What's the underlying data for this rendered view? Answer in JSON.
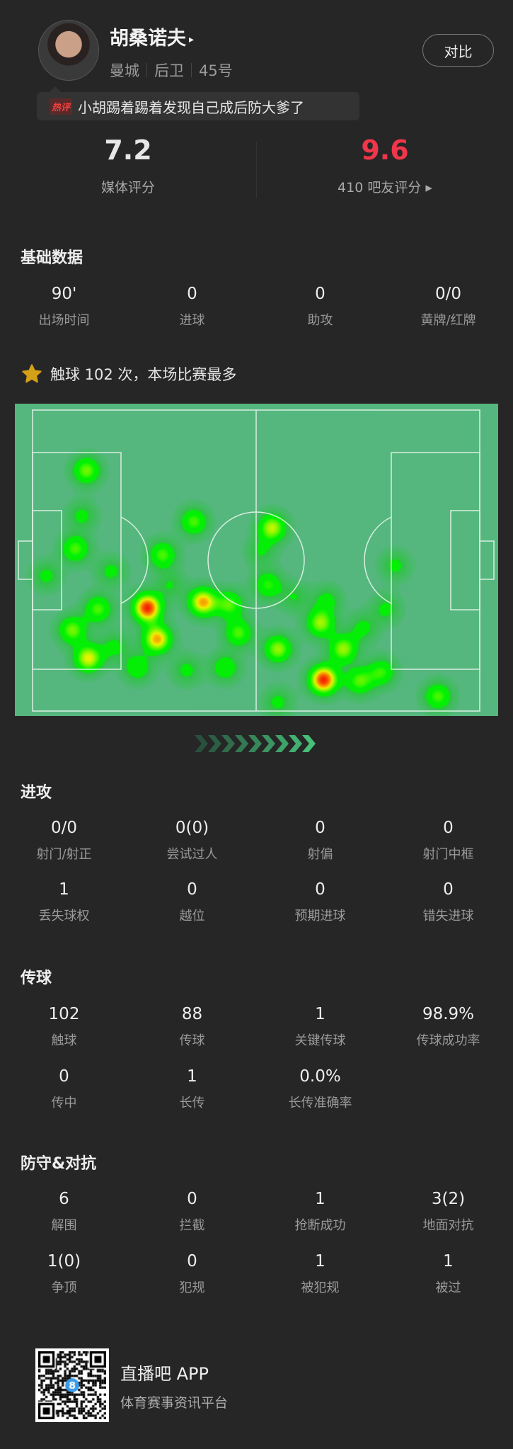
{
  "player": {
    "name": "胡桑诺夫",
    "name_arrow": "▸",
    "team": "曼城",
    "position": "后卫",
    "number": "45号",
    "compare_label": "对比"
  },
  "hot_comment": {
    "tag": "热评",
    "text": "小胡踢着踢着发现自己成后防大爹了"
  },
  "ratings": {
    "media": {
      "value": "7.2",
      "label": "媒体评分"
    },
    "fans": {
      "value": "9.6",
      "label": "410 吧友评分 ▸",
      "color": "#f0364a"
    }
  },
  "basic": {
    "title": "基础数据",
    "items": [
      {
        "value": "90'",
        "label": "出场时间"
      },
      {
        "value": "0",
        "label": "进球"
      },
      {
        "value": "0",
        "label": "助攻"
      },
      {
        "value": "0/0",
        "label": "黄牌/红牌"
      }
    ]
  },
  "highlight": {
    "icon": "star-icon",
    "color": "#d4a017",
    "text": "触球 102 次，本场比赛最多"
  },
  "heatmap": {
    "pitch_color": "#55b77e",
    "attack_direction": "right",
    "points": [
      [
        12,
        20,
        0.55
      ],
      [
        11,
        35,
        0.3
      ],
      [
        9.5,
        46,
        0.5
      ],
      [
        3,
        55,
        0.3
      ],
      [
        17.5,
        53.5,
        0.3
      ],
      [
        36,
        37,
        0.5
      ],
      [
        53.5,
        39,
        0.65
      ],
      [
        29,
        48,
        0.5
      ],
      [
        25.6,
        65.6,
        1.0
      ],
      [
        38,
        63.7,
        0.8
      ],
      [
        27.8,
        76,
        0.8
      ],
      [
        12.4,
        82.4,
        0.7
      ],
      [
        8.8,
        73,
        0.55
      ],
      [
        14.6,
        66,
        0.5
      ],
      [
        44,
        64.5,
        0.5
      ],
      [
        46,
        74,
        0.5
      ],
      [
        52.6,
        58,
        0.45
      ],
      [
        51,
        47,
        0.25
      ],
      [
        30.7,
        58,
        0.25
      ],
      [
        64.3,
        70.7,
        0.6
      ],
      [
        54.8,
        79.3,
        0.6
      ],
      [
        65,
        89.5,
        1.0
      ],
      [
        69.4,
        79.3,
        0.6
      ],
      [
        73,
        90,
        0.5
      ],
      [
        78,
        87,
        0.45
      ],
      [
        81,
        51.6,
        0.3
      ],
      [
        79,
        66,
        0.3
      ],
      [
        90.6,
        95,
        0.5
      ],
      [
        54.8,
        97,
        0.3
      ],
      [
        34.4,
        86.3,
        0.3
      ],
      [
        43,
        85.5,
        0.4
      ],
      [
        23.4,
        85.5,
        0.4
      ],
      [
        18.3,
        78.5,
        0.3
      ],
      [
        65.8,
        63,
        0.3
      ],
      [
        58.5,
        62,
        0.25
      ],
      [
        73.8,
        72.3,
        0.3
      ]
    ]
  },
  "attack": {
    "title": "进攻",
    "items": [
      {
        "value": "0/0",
        "label": "射门/射正"
      },
      {
        "value": "0(0)",
        "label": "尝试过人"
      },
      {
        "value": "0",
        "label": "射偏"
      },
      {
        "value": "0",
        "label": "射门中框"
      },
      {
        "value": "1",
        "label": "丢失球权"
      },
      {
        "value": "0",
        "label": "越位"
      },
      {
        "value": "0",
        "label": "预期进球"
      },
      {
        "value": "0",
        "label": "错失进球"
      }
    ]
  },
  "passing": {
    "title": "传球",
    "items": [
      {
        "value": "102",
        "label": "触球"
      },
      {
        "value": "88",
        "label": "传球"
      },
      {
        "value": "1",
        "label": "关键传球"
      },
      {
        "value": "98.9%",
        "label": "传球成功率"
      },
      {
        "value": "0",
        "label": "传中"
      },
      {
        "value": "1",
        "label": "长传"
      },
      {
        "value": "0.0%",
        "label": "长传准确率"
      }
    ]
  },
  "defense": {
    "title": "防守&对抗",
    "items": [
      {
        "value": "6",
        "label": "解围"
      },
      {
        "value": "0",
        "label": "拦截"
      },
      {
        "value": "1",
        "label": "抢断成功"
      },
      {
        "value": "3(2)",
        "label": "地面对抗"
      },
      {
        "value": "1(0)",
        "label": "争顶"
      },
      {
        "value": "0",
        "label": "犯规"
      },
      {
        "value": "1",
        "label": "被犯规"
      },
      {
        "value": "1",
        "label": "被过"
      }
    ]
  },
  "footer": {
    "app_name": "直播吧 APP",
    "tagline": "体育赛事资讯平台"
  }
}
